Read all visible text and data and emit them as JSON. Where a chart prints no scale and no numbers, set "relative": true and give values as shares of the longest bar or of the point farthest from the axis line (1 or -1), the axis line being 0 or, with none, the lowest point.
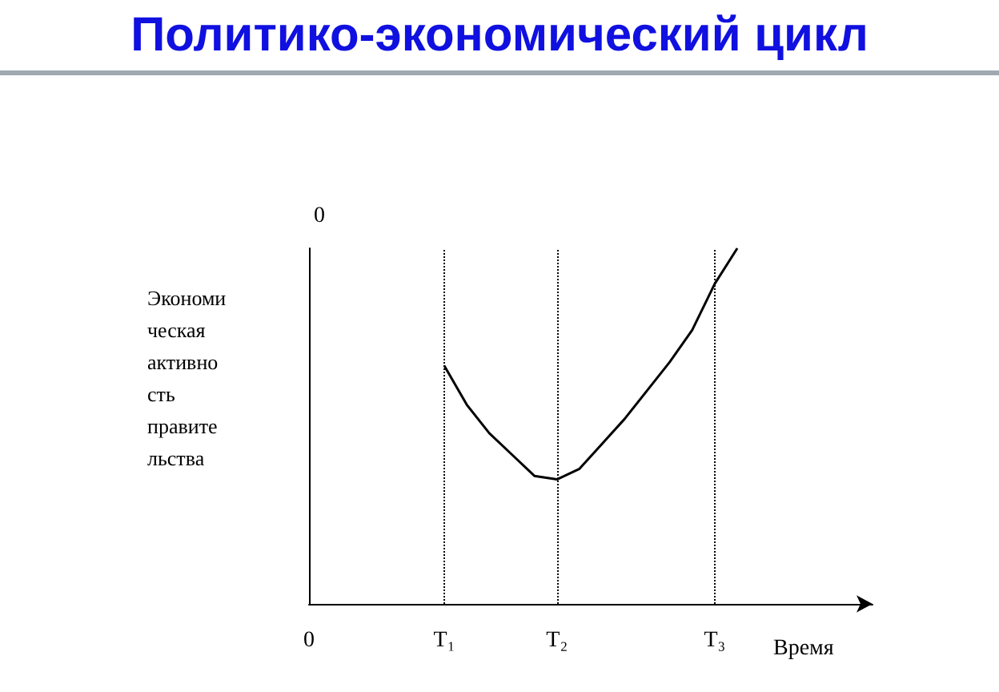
{
  "chart_data": {
    "type": "line",
    "title": "Политико-экономический цикл",
    "xlabel": "Время",
    "ylabel": "Экономическая активность правительства",
    "relative": true,
    "marker": "none",
    "line_style": "solid",
    "annotations": [
      "0"
    ],
    "categories": [
      "0",
      null,
      null,
      null,
      null,
      null,
      "T₁",
      null,
      null,
      null,
      null,
      "T₂",
      null,
      null,
      null,
      null,
      null,
      null,
      "T₃",
      null,
      null,
      null,
      null,
      null,
      null,
      null
    ],
    "ref_lines": [
      {
        "axis": "x",
        "value": "T₁",
        "label": null,
        "line_style": "dotted"
      },
      {
        "axis": "x",
        "value": "T₂",
        "label": null,
        "line_style": "dotted"
      },
      {
        "axis": "x",
        "value": "T₃",
        "label": null,
        "line_style": "dotted"
      }
    ],
    "series": [
      {
        "color": "#000000",
        "values": [
          null,
          null,
          null,
          null,
          null,
          null,
          0.67,
          0.56,
          0.48,
          0.42,
          0.36,
          0.35,
          0.38,
          0.45,
          0.52,
          0.6,
          0.68,
          0.77,
          0.9,
          1,
          null,
          null,
          null,
          null,
          null,
          null
        ]
      }
    ]
  }
}
